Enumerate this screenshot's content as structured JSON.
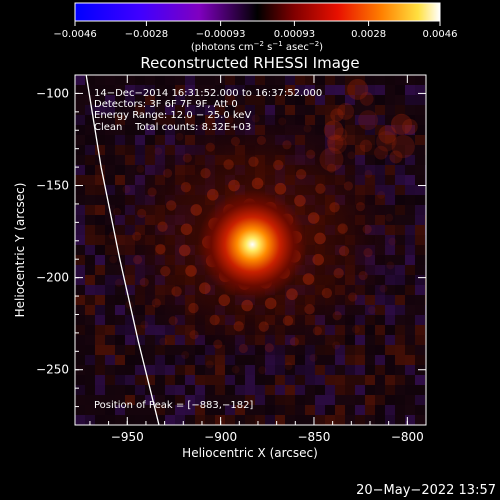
{
  "chart_data": {
    "type": "heatmap",
    "title": "Reconstructed RHESSI Image",
    "xlabel": "Heliocentric X (arcsec)",
    "ylabel": "Heliocentric Y (arcsec)",
    "xlim": [
      -978,
      -790
    ],
    "ylim": [
      -280,
      -90
    ],
    "xticks": [
      {
        "value": -950,
        "label": "−950"
      },
      {
        "value": -900,
        "label": "−900"
      },
      {
        "value": -850,
        "label": "−850"
      },
      {
        "value": -800,
        "label": "−800"
      }
    ],
    "yticks": [
      {
        "value": -100,
        "label": "−100"
      },
      {
        "value": -150,
        "label": "−150"
      },
      {
        "value": -200,
        "label": "−200"
      },
      {
        "value": -250,
        "label": "−250"
      }
    ],
    "colorbar": {
      "range": [
        -0.0046,
        0.0046
      ],
      "ticks": [
        {
          "value": -0.0046,
          "label": "−0.0046"
        },
        {
          "value": -0.0028,
          "label": "−0.0028"
        },
        {
          "value": -0.00093,
          "label": "−0.00093"
        },
        {
          "value": 0.00093,
          "label": "0.00093"
        },
        {
          "value": 0.0028,
          "label": "0.0028"
        },
        {
          "value": 0.0046,
          "label": "0.0046"
        }
      ],
      "unit_parts": [
        "(photons cm",
        "−2",
        " s",
        "−1",
        " asec",
        "−2",
        ")"
      ]
    },
    "annotations": [
      "14−Dec−2014 16:31:52.000 to 16:37:52.000",
      "Detectors: 3F 6F 7F 9F, Att 0",
      "Energy Range: 12.0 − 25.0 keV",
      "Clean    Total counts: 8.32E+03"
    ],
    "peak_label": "Position of Peak = [−883,−182]",
    "peak": {
      "x": -883,
      "y": -182
    },
    "limb": [
      {
        "x": -972,
        "y": -90
      },
      {
        "x": -964,
        "y": -140
      },
      {
        "x": -954,
        "y": -190
      },
      {
        "x": -944,
        "y": -235
      },
      {
        "x": -933,
        "y": -280
      }
    ],
    "colors": {
      "limb": "#ffffff",
      "background": "#000000"
    }
  },
  "footer": {
    "timestamp": "20−May−2022 13:57"
  }
}
